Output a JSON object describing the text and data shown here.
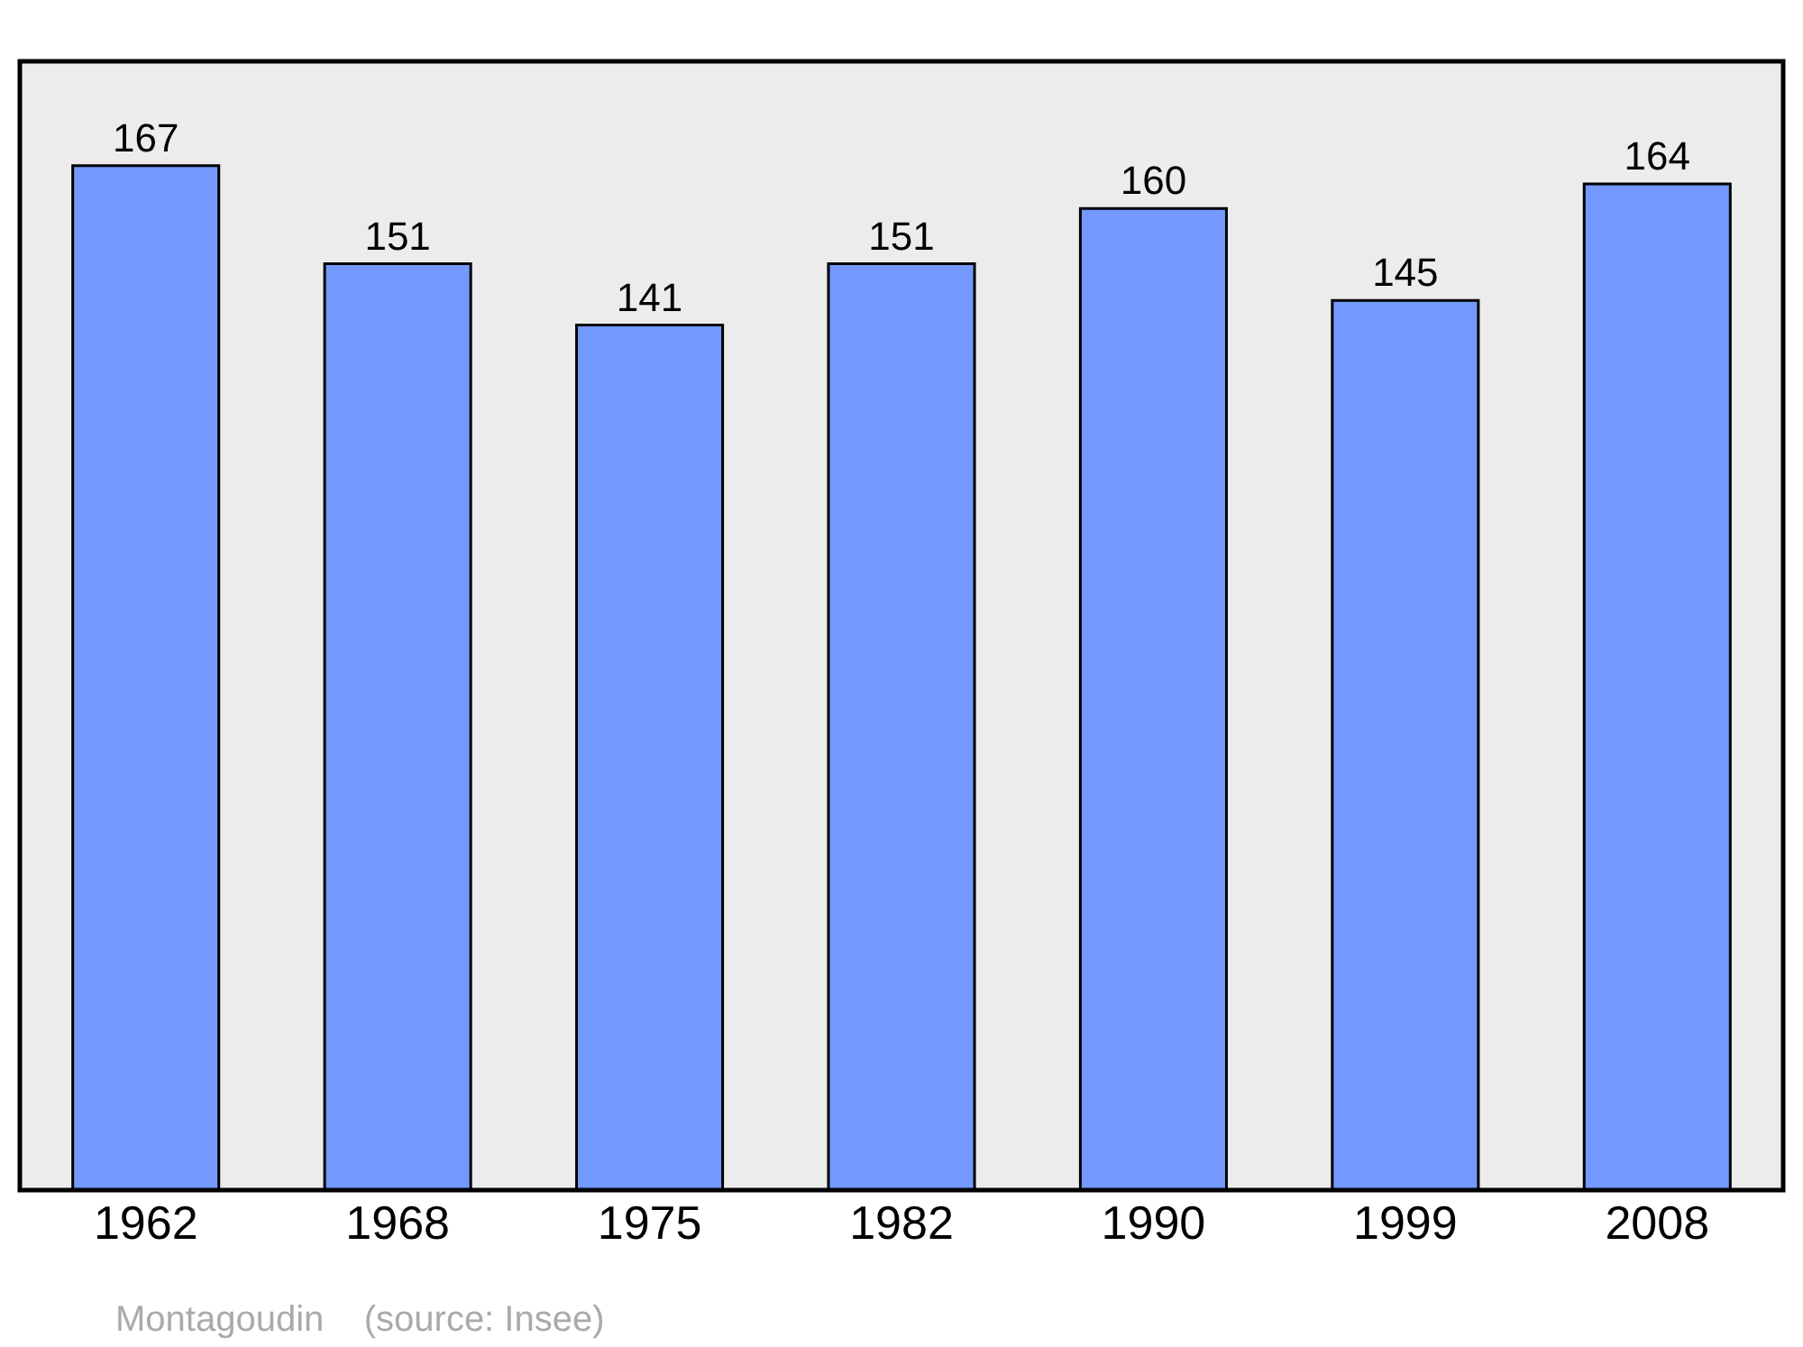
{
  "chart_data": {
    "type": "bar",
    "categories": [
      "1962",
      "1968",
      "1975",
      "1982",
      "1990",
      "1999",
      "2008"
    ],
    "values": [
      167,
      151,
      141,
      151,
      160,
      145,
      164
    ],
    "color": "#7399ff",
    "ylim": [
      0,
      184
    ],
    "data_labels": true,
    "tick_labels": "x",
    "grid": false,
    "legend": false,
    "annotations": [
      "Montagoudin    (source: Insee)"
    ]
  }
}
